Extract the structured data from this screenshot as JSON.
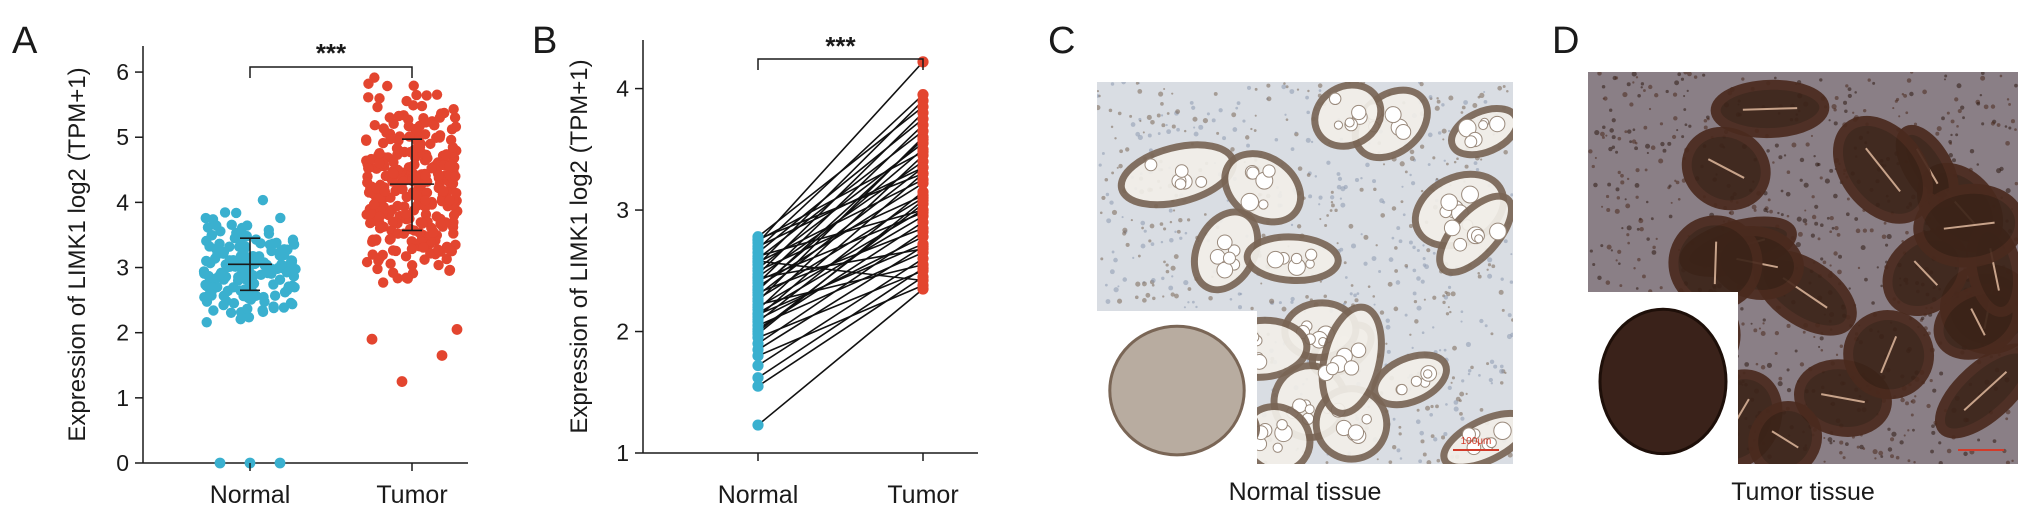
{
  "panels": {
    "a": "A",
    "b": "B",
    "c": "C",
    "d": "D"
  },
  "captions": {
    "c": "Normal tissue",
    "d": "Tumor tissue"
  },
  "colors": {
    "normal": "#3ab0cf",
    "tumor": "#e3452f",
    "tissue_normal_bg": "#d9dde3",
    "tissue_normal_stain": "#7a6656",
    "tissue_tumor_bg": "#8a7f86",
    "tissue_tumor_stain": "#4a2a1e"
  },
  "scale_bar_label": "100μm",
  "chart_data": [
    {
      "type": "scatter",
      "panel": "A",
      "categories": [
        "Normal",
        "Tumor"
      ],
      "ylabel": "Expression of LIMK1 log2 (TPM+1)",
      "ylim": [
        0,
        6.4
      ],
      "yticks": [
        0,
        1,
        2,
        3,
        4,
        5,
        6
      ],
      "significance": "***",
      "groups": [
        {
          "name": "Normal",
          "mean": 3.05,
          "sd_low": 2.65,
          "sd_high": 3.45,
          "n_points": 160,
          "min": 1.85,
          "max": 4.25,
          "outliers": [
            0,
            0,
            0
          ]
        },
        {
          "name": "Tumor",
          "mean": 4.28,
          "sd_low": 3.57,
          "sd_high": 4.97,
          "n_points": 320,
          "min": 1.25,
          "max": 5.95,
          "outliers": [
            1.25,
            1.65,
            1.9,
            2.05
          ]
        }
      ]
    },
    {
      "type": "line",
      "panel": "B",
      "categories": [
        "Normal",
        "Tumor"
      ],
      "ylabel": "Expression of LIMK1 log2 (TPM+1)",
      "ylim": [
        1,
        4.4
      ],
      "yticks": [
        1,
        2,
        3,
        4
      ],
      "significance": "***",
      "pairs": [
        [
          1.23,
          2.35
        ],
        [
          1.55,
          2.45
        ],
        [
          1.62,
          2.52
        ],
        [
          1.72,
          2.6
        ],
        [
          1.8,
          2.38
        ],
        [
          1.85,
          2.7
        ],
        [
          1.9,
          2.82
        ],
        [
          1.95,
          2.5
        ],
        [
          2.0,
          3.05
        ],
        [
          2.02,
          2.9
        ],
        [
          2.05,
          2.65
        ],
        [
          2.08,
          3.15
        ],
        [
          2.1,
          2.78
        ],
        [
          2.12,
          3.3
        ],
        [
          2.15,
          2.95
        ],
        [
          2.18,
          3.45
        ],
        [
          2.2,
          3.0
        ],
        [
          2.22,
          2.55
        ],
        [
          2.25,
          3.6
        ],
        [
          2.27,
          3.1
        ],
        [
          2.3,
          3.35
        ],
        [
          2.32,
          2.85
        ],
        [
          2.35,
          3.5
        ],
        [
          2.37,
          3.22
        ],
        [
          2.4,
          3.7
        ],
        [
          2.42,
          2.98
        ],
        [
          2.45,
          3.4
        ],
        [
          2.47,
          3.8
        ],
        [
          2.5,
          3.12
        ],
        [
          2.52,
          3.55
        ],
        [
          2.55,
          3.9
        ],
        [
          2.57,
          3.25
        ],
        [
          2.6,
          3.65
        ],
        [
          2.62,
          3.0
        ],
        [
          2.65,
          3.75
        ],
        [
          2.68,
          3.95
        ],
        [
          2.7,
          3.35
        ],
        [
          2.73,
          4.22
        ],
        [
          2.75,
          3.48
        ],
        [
          2.78,
          3.85
        ],
        [
          2.58,
          2.42
        ],
        [
          2.44,
          2.68
        ],
        [
          2.34,
          3.58
        ],
        [
          2.14,
          2.72
        ],
        [
          1.98,
          3.08
        ],
        [
          2.76,
          3.3
        ]
      ]
    }
  ]
}
